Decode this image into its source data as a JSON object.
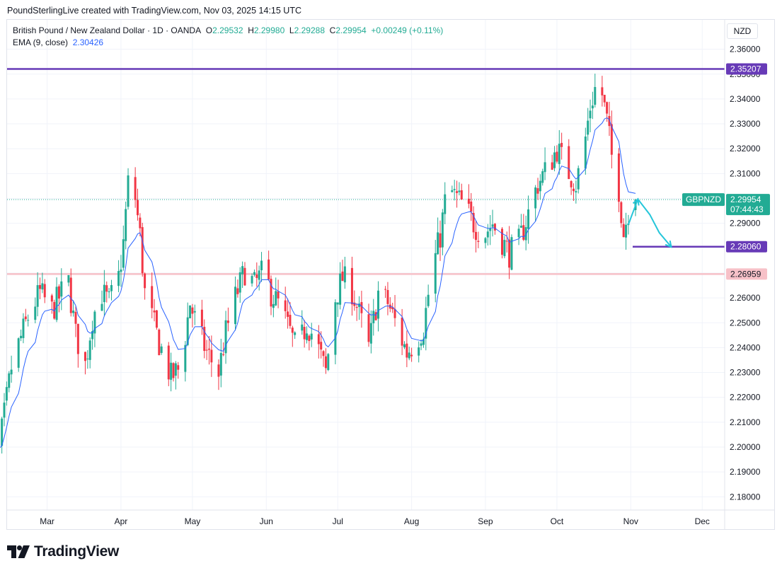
{
  "header": {
    "created_line": "PoundSterlingLive created with TradingView.com, Nov 03, 2025 14:15 UTC"
  },
  "legend": {
    "symbol": "British Pound / New Zealand Dollar · 1D · OANDA",
    "o_label": "O",
    "o_value": "2.29532",
    "h_label": "H",
    "h_value": "2.29980",
    "l_label": "L",
    "l_value": "2.29288",
    "c_label": "C",
    "c_value": "2.29954",
    "change": "+0.00249 (+0.11%)",
    "ema_label": "EMA (9, close)",
    "ema_value": "2.30426"
  },
  "currency": "NZD",
  "price_labels": {
    "resistance": "2.35207",
    "support": "2.28060",
    "pink_level": "2.26959",
    "ticker": "GBPNZD",
    "last_price": "2.29954",
    "countdown": "07:44:43"
  },
  "brand": {
    "name": "TradingView"
  },
  "colors": {
    "up": "#22ab94",
    "down": "#f23645",
    "ema": "#2962ff",
    "purple": "#673ab7",
    "pink": "#f7c1c8",
    "arrow": "#26c6da",
    "grid": "#f0f3fa"
  },
  "chart_data": {
    "type": "candlestick",
    "ylim": [
      2.175,
      2.365
    ],
    "y_ticks": [
      "2.36000",
      "2.35000",
      "2.34000",
      "2.33000",
      "2.32000",
      "2.31000",
      "2.30000",
      "2.29000",
      "2.28000",
      "2.27000",
      "2.26000",
      "2.25000",
      "2.24000",
      "2.23000",
      "2.22000",
      "2.21000",
      "2.20000",
      "2.19000",
      "2.18000"
    ],
    "x_months": [
      "Mar",
      "Apr",
      "May",
      "Jun",
      "Jul",
      "Aug",
      "Sep",
      "Oct",
      "Nov",
      "Dec"
    ],
    "horizontal_levels": [
      {
        "value": 2.35207,
        "color": "purple",
        "style": "full"
      },
      {
        "value": 2.2806,
        "color": "purple",
        "style": "from-last"
      },
      {
        "value": 2.26959,
        "color": "pink",
        "style": "full"
      },
      {
        "value": 2.29954,
        "color": "last",
        "style": "dotted"
      }
    ],
    "close_path": [
      [
        "2025-02-01",
        2.207
      ],
      [
        "2025-02-05",
        2.195
      ],
      [
        "2025-02-09",
        2.2
      ],
      [
        "2025-02-14",
        2.232
      ],
      [
        "2025-02-18",
        2.244
      ],
      [
        "2025-02-22",
        2.255
      ],
      [
        "2025-02-26",
        2.262
      ],
      [
        "2025-03-03",
        2.255
      ],
      [
        "2025-03-07",
        2.262
      ],
      [
        "2025-03-10",
        2.266
      ],
      [
        "2025-03-13",
        2.245
      ],
      [
        "2025-03-17",
        2.233
      ],
      [
        "2025-03-20",
        2.252
      ],
      [
        "2025-03-24",
        2.262
      ],
      [
        "2025-03-27",
        2.258
      ],
      [
        "2025-03-31",
        2.268
      ],
      [
        "2025-04-02",
        2.282
      ],
      [
        "2025-04-04",
        2.306
      ],
      [
        "2025-04-07",
        2.3
      ],
      [
        "2025-04-09",
        2.285
      ],
      [
        "2025-04-11",
        2.262
      ],
      [
        "2025-04-14",
        2.252
      ],
      [
        "2025-04-17",
        2.242
      ],
      [
        "2025-04-22",
        2.228
      ],
      [
        "2025-04-26",
        2.232
      ],
      [
        "2025-04-30",
        2.258
      ],
      [
        "2025-05-03",
        2.248
      ],
      [
        "2025-05-07",
        2.238
      ],
      [
        "2025-05-12",
        2.23
      ],
      [
        "2025-05-15",
        2.246
      ],
      [
        "2025-05-19",
        2.26
      ],
      [
        "2025-05-23",
        2.271
      ],
      [
        "2025-05-27",
        2.265
      ],
      [
        "2025-05-31",
        2.271
      ],
      [
        "2025-06-03",
        2.262
      ],
      [
        "2025-06-07",
        2.256
      ],
      [
        "2025-06-11",
        2.246
      ],
      [
        "2025-06-14",
        2.238
      ],
      [
        "2025-06-18",
        2.25
      ],
      [
        "2025-06-22",
        2.242
      ],
      [
        "2025-06-26",
        2.23
      ],
      [
        "2025-06-30",
        2.26
      ],
      [
        "2025-07-03",
        2.268
      ],
      [
        "2025-07-07",
        2.263
      ],
      [
        "2025-07-11",
        2.25
      ],
      [
        "2025-07-14",
        2.24
      ],
      [
        "2025-07-18",
        2.262
      ],
      [
        "2025-07-22",
        2.258
      ],
      [
        "2025-07-26",
        2.248
      ],
      [
        "2025-07-30",
        2.238
      ],
      [
        "2025-08-02",
        2.242
      ],
      [
        "2025-08-06",
        2.248
      ],
      [
        "2025-08-09",
        2.268
      ],
      [
        "2025-08-13",
        2.285
      ],
      [
        "2025-08-16",
        2.305
      ],
      [
        "2025-08-19",
        2.301
      ],
      [
        "2025-08-23",
        2.297
      ],
      [
        "2025-08-27",
        2.29
      ],
      [
        "2025-08-31",
        2.285
      ],
      [
        "2025-09-04",
        2.29
      ],
      [
        "2025-09-08",
        2.283
      ],
      [
        "2025-09-11",
        2.278
      ],
      [
        "2025-09-15",
        2.282
      ],
      [
        "2025-09-19",
        2.294
      ],
      [
        "2025-09-23",
        2.306
      ],
      [
        "2025-09-27",
        2.312
      ],
      [
        "2025-10-01",
        2.32
      ],
      [
        "2025-10-05",
        2.312
      ],
      [
        "2025-10-09",
        2.306
      ],
      [
        "2025-10-12",
        2.318
      ],
      [
        "2025-10-15",
        2.337
      ],
      [
        "2025-10-17",
        2.344
      ],
      [
        "2025-10-19",
        2.347
      ],
      [
        "2025-10-22",
        2.331
      ],
      [
        "2025-10-24",
        2.317
      ],
      [
        "2025-10-27",
        2.304
      ],
      [
        "2025-10-29",
        2.286
      ],
      [
        "2025-10-31",
        2.2953
      ],
      [
        "2025-11-03",
        2.29954
      ]
    ],
    "ema_last": 2.30426,
    "forecast_arrow": [
      [
        "2025-10-31",
        2.2895
      ],
      [
        "2025-11-04",
        2.2997
      ],
      [
        "2025-11-09",
        2.2935
      ],
      [
        "2025-11-13",
        2.2862
      ],
      [
        "2025-11-18",
        2.2805
      ]
    ]
  }
}
